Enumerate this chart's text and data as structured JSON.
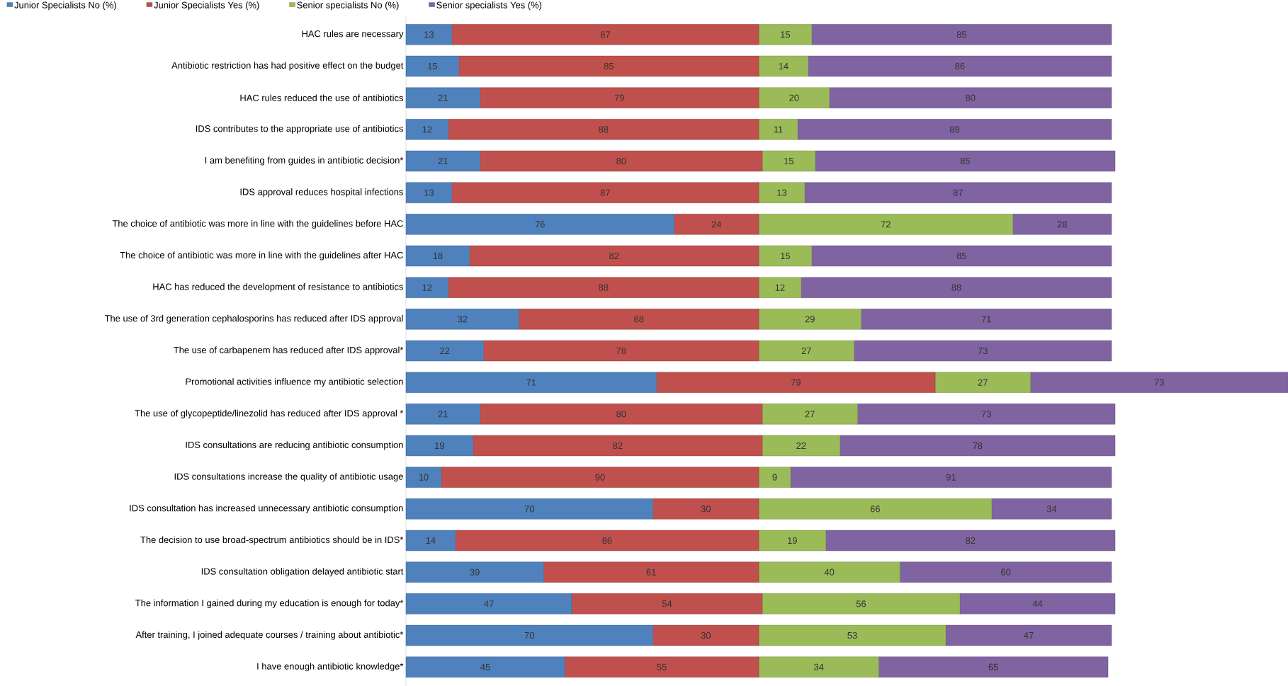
{
  "chart_data": {
    "type": "bar",
    "orientation": "horizontal",
    "stacked": true,
    "data_labels": true,
    "legend": "top left",
    "tick_labels": "y",
    "categories": [
      "HAC rules are necessary",
      "Antibiotic restriction has had positive effect on the budget",
      "HAC rules reduced the use of antibiotics",
      "IDS contributes to the appropriate use of antibiotics",
      "I am benefiting from guides in antibiotic decision*",
      "IDS approval reduces hospital infections",
      "The choice of antibiotic was more in line with the guidelines before HAC",
      "The choice of antibiotic was more in line with the guidelines after HAC",
      "HAC has reduced the development of resistance to antibiotics",
      "The use of 3rd generation cephalosporins has reduced after IDS approval",
      "The use of carbapenem has reduced after IDS approval*",
      "Promotional activities influence my antibiotic selection",
      "The use of glycopeptide/linezolid has reduced after IDS approval *",
      "IDS consultations are reducing antibiotic consumption",
      "IDS consultations increase the quality of antibiotic usage",
      "IDS consultation has increased unnecessary antibiotic consumption",
      "The decision to use broad-spectrum antibiotics should be in IDS*",
      "IDS consultation obligation delayed antibiotic start",
      "The information I gained during my education is enough for today*",
      "After training, I joined adequate courses / training about antibiotic*",
      "I have enough antibiotic knowledge*"
    ],
    "series": [
      {
        "name": "Junior Specialists No (%)",
        "color": "#4f81bd",
        "values": [
          13,
          15,
          21,
          12,
          21,
          13,
          76,
          18,
          12,
          32,
          22,
          71,
          21,
          19,
          10,
          70,
          14,
          39,
          47,
          70,
          45
        ]
      },
      {
        "name": "Junior Specialists Yes (%)",
        "color": "#c0504d",
        "values": [
          87,
          85,
          79,
          88,
          80,
          87,
          24,
          82,
          88,
          68,
          78,
          79,
          80,
          82,
          90,
          30,
          86,
          61,
          54,
          30,
          55
        ]
      },
      {
        "name": "Senior specialists No (%)",
        "color": "#9bbb59",
        "values": [
          15,
          14,
          20,
          11,
          15,
          13,
          72,
          15,
          12,
          29,
          27,
          27,
          27,
          22,
          9,
          66,
          19,
          40,
          56,
          53,
          34
        ]
      },
      {
        "name": "Senior specialists Yes (%)",
        "color": "#8064a2",
        "values": [
          85,
          86,
          80,
          89,
          85,
          87,
          28,
          85,
          88,
          71,
          73,
          73,
          73,
          78,
          91,
          34,
          82,
          60,
          44,
          47,
          65
        ]
      }
    ]
  }
}
